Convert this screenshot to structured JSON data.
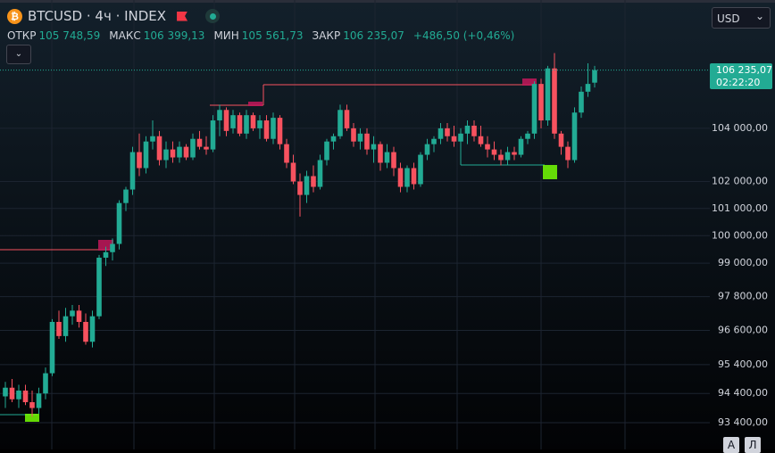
{
  "header": {
    "symbol": "BTCUSD · 4ч · INDEX",
    "coin_icon": "₿",
    "ohlc": [
      {
        "label": "ОТКР",
        "text": "105 748,59"
      },
      {
        "label": "МАКС",
        "text": "106 399,13"
      },
      {
        "label": "МИН",
        "text": "105 561,73"
      },
      {
        "label": "ЗАКР",
        "text": "106 235,07"
      }
    ],
    "change": "+486,50 (+0,46%)",
    "collapse": "⌄"
  },
  "currency": "USD",
  "buttons": [
    "A",
    "Л"
  ],
  "chart_data": {
    "type": "candlestick",
    "up_color": "#22ab94",
    "down_color": "#f7525f",
    "grid": true,
    "log_scale": true,
    "ylim": [
      92490,
      108990
    ],
    "yticks": [
      {
        "value": 104000,
        "label": "104 000,00"
      },
      {
        "value": 102000,
        "label": "102 000,00"
      },
      {
        "value": 101000,
        "label": "101 000,00"
      },
      {
        "value": 100000,
        "label": "100 000,00"
      },
      {
        "value": 99000,
        "label": "99 000,00"
      },
      {
        "value": 97800,
        "label": "97 800,00"
      },
      {
        "value": 96600,
        "label": "96 600,00"
      },
      {
        "value": 95400,
        "label": "95 400,00"
      },
      {
        "value": 94400,
        "label": "94 400,00"
      },
      {
        "value": 93400,
        "label": "93 400,00"
      }
    ],
    "last_price": {
      "value": 106235.07,
      "label": "106 235,07"
    },
    "countdown": "02:22:20",
    "open": [
      94300,
      94600,
      94200,
      94500,
      94100,
      93900,
      94400,
      95100,
      96900,
      96400,
      97100,
      97300,
      96900,
      96200,
      97100,
      99200,
      99400,
      99700,
      101200,
      101700,
      103100,
      102500,
      103500,
      103700,
      102800,
      103200,
      102900,
      103300,
      102900,
      103600,
      103300,
      103200,
      104300,
      104700,
      104000,
      104500,
      103800,
      104500,
      104000,
      104300,
      103600,
      104400,
      103400,
      102700,
      102000,
      101500,
      102200,
      101800,
      102800,
      103500,
      103700,
      104700,
      104000,
      103500,
      103800,
      103200,
      103400,
      102700,
      103100,
      102500,
      101800,
      102500,
      101900,
      103000,
      103400,
      103600,
      104000,
      103700,
      103500,
      103800,
      104100,
      103700,
      103400,
      103200,
      103000,
      102800,
      103100,
      103000,
      103600,
      103800,
      105700,
      104300,
      106300,
      103800,
      103300,
      102800,
      104600,
      105400,
      105748.59
    ],
    "high": [
      94800,
      94900,
      94700,
      94700,
      94500,
      94600,
      95300,
      97000,
      97300,
      97400,
      97500,
      97500,
      97200,
      97300,
      99300,
      99600,
      99900,
      101300,
      101800,
      103300,
      103800,
      103700,
      104300,
      103900,
      103500,
      103500,
      103500,
      103400,
      103800,
      103900,
      103700,
      104500,
      104900,
      104800,
      104700,
      104600,
      104700,
      104600,
      104500,
      104500,
      104600,
      104500,
      103600,
      103000,
      102300,
      102400,
      102600,
      103000,
      103600,
      103800,
      104900,
      104900,
      104200,
      104000,
      104000,
      103700,
      103500,
      103400,
      103300,
      102700,
      102600,
      102700,
      103100,
      103600,
      103700,
      104200,
      104200,
      104100,
      104000,
      104300,
      104300,
      104100,
      103700,
      103500,
      103200,
      103300,
      103300,
      103700,
      103900,
      105800,
      105900,
      106400,
      106900,
      103900,
      103500,
      104800,
      105600,
      106500,
      106399.13
    ],
    "low": [
      93900,
      94100,
      93900,
      94000,
      93600,
      93700,
      94200,
      95000,
      96300,
      96200,
      96800,
      96700,
      96100,
      96000,
      97000,
      98900,
      99100,
      99500,
      100900,
      101500,
      102200,
      102300,
      103200,
      102600,
      102500,
      102700,
      102700,
      102800,
      102800,
      103200,
      103000,
      103100,
      103700,
      103700,
      103800,
      103700,
      103600,
      103900,
      103600,
      103500,
      103400,
      103200,
      102500,
      101900,
      100700,
      101200,
      101600,
      101700,
      102600,
      103200,
      103600,
      103900,
      103300,
      103200,
      103000,
      102700,
      102400,
      102500,
      102200,
      101600,
      101600,
      101700,
      101800,
      102800,
      103100,
      103400,
      103500,
      103300,
      103100,
      103400,
      103500,
      103300,
      102900,
      102800,
      102600,
      102600,
      102800,
      102900,
      103400,
      103600,
      104000,
      104100,
      103600,
      103000,
      102500,
      102700,
      104400,
      105200,
      105561.73
    ],
    "close": [
      94600,
      94200,
      94500,
      94100,
      93900,
      94400,
      95100,
      96900,
      96400,
      97100,
      97300,
      96900,
      96200,
      97100,
      99200,
      99400,
      99700,
      101200,
      101700,
      103100,
      102500,
      103500,
      103700,
      102800,
      103200,
      102900,
      103300,
      102900,
      103600,
      103300,
      103200,
      104300,
      104700,
      103900,
      104500,
      103800,
      104500,
      104000,
      104300,
      103600,
      104400,
      103400,
      102700,
      102000,
      101500,
      102200,
      101800,
      102800,
      103500,
      103700,
      104700,
      104000,
      103500,
      103800,
      103200,
      103400,
      102700,
      103100,
      102500,
      101800,
      102500,
      101900,
      103000,
      103400,
      103600,
      104000,
      103700,
      103500,
      103800,
      104100,
      103700,
      103400,
      103200,
      103000,
      102800,
      103100,
      103000,
      103600,
      103800,
      105700,
      104300,
      106300,
      103800,
      103300,
      102800,
      104600,
      105400,
      105700,
      106235.07
    ]
  }
}
